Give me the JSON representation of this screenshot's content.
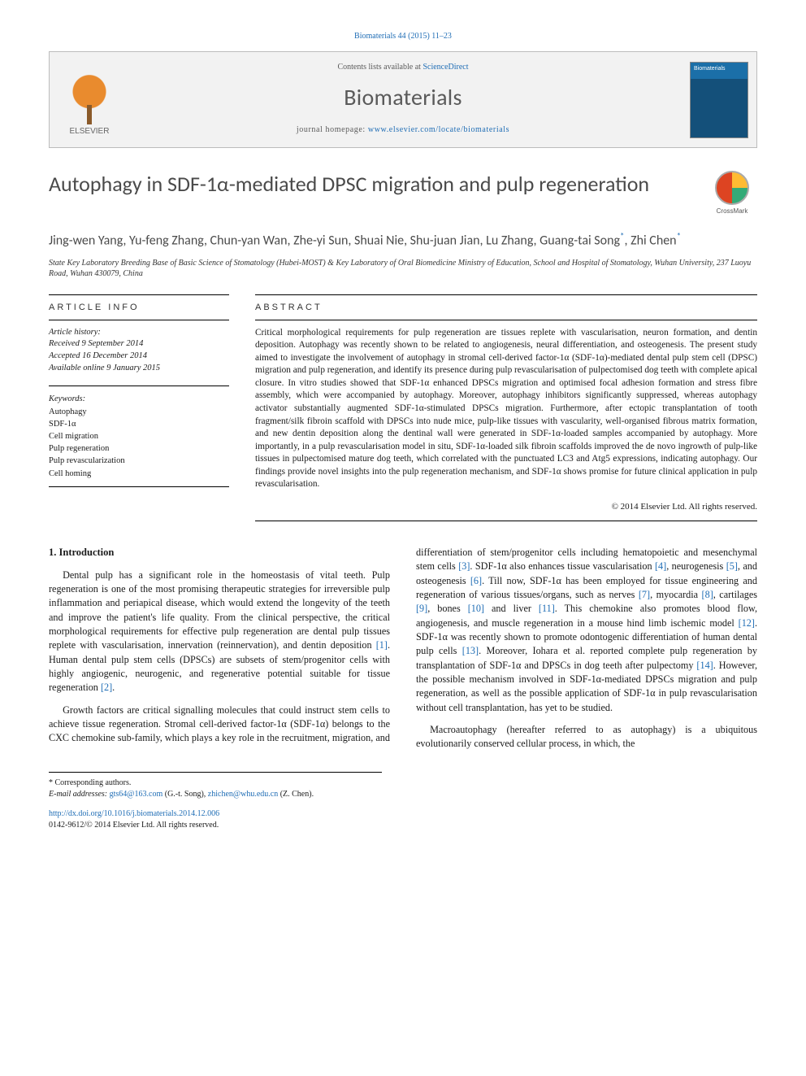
{
  "citation": "Biomaterials 44 (2015) 11–23",
  "header": {
    "contents_prefix": "Contents lists available at ",
    "contents_link": "ScienceDirect",
    "journal": "Biomaterials",
    "homepage_prefix": "journal homepage: ",
    "homepage_url": "www.elsevier.com/locate/biomaterials",
    "publisher_name": "ELSEVIER"
  },
  "crossmark_label": "CrossMark",
  "title": "Autophagy in SDF-1α-mediated DPSC migration and pulp regeneration",
  "authors_line": "Jing-wen Yang, Yu-feng Zhang, Chun-yan Wan, Zhe-yi Sun, Shuai Nie, Shu-juan Jian, Lu Zhang, Guang-tai Song",
  "authors_tail": ", Zhi Chen",
  "corr_marker": "*",
  "affiliation": "State Key Laboratory Breeding Base of Basic Science of Stomatology (Hubei-MOST) & Key Laboratory of Oral Biomedicine Ministry of Education, School and Hospital of Stomatology, Wuhan University, 237 Luoyu Road, Wuhan 430079, China",
  "info_label": "ARTICLE INFO",
  "abstract_label": "ABSTRACT",
  "history": {
    "label": "Article history:",
    "received": "Received 9 September 2014",
    "accepted": "Accepted 16 December 2014",
    "online": "Available online 9 January 2015"
  },
  "keywords_label": "Keywords:",
  "keywords": [
    "Autophagy",
    "SDF-1α",
    "Cell migration",
    "Pulp regeneration",
    "Pulp revascularization",
    "Cell homing"
  ],
  "abstract": "Critical morphological requirements for pulp regeneration are tissues replete with vascularisation, neuron formation, and dentin deposition. Autophagy was recently shown to be related to angiogenesis, neural differentiation, and osteogenesis. The present study aimed to investigate the involvement of autophagy in stromal cell-derived factor-1α (SDF-1α)-mediated dental pulp stem cell (DPSC) migration and pulp regeneration, and identify its presence during pulp revascularisation of pulpectomised dog teeth with complete apical closure. In vitro studies showed that SDF-1α enhanced DPSCs migration and optimised focal adhesion formation and stress fibre assembly, which were accompanied by autophagy. Moreover, autophagy inhibitors significantly suppressed, whereas autophagy activator substantially augmented SDF-1α-stimulated DPSCs migration. Furthermore, after ectopic transplantation of tooth fragment/silk fibroin scaffold with DPSCs into nude mice, pulp-like tissues with vascularity, well-organised fibrous matrix formation, and new dentin deposition along the dentinal wall were generated in SDF-1α-loaded samples accompanied by autophagy. More importantly, in a pulp revascularisation model in situ, SDF-1α-loaded silk fibroin scaffolds improved the de novo ingrowth of pulp-like tissues in pulpectomised mature dog teeth, which correlated with the punctuated LC3 and Atg5 expressions, indicating autophagy. Our findings provide novel insights into the pulp regeneration mechanism, and SDF-1α shows promise for future clinical application in pulp revascularisation.",
  "copyright": "© 2014 Elsevier Ltd. All rights reserved.",
  "intro_heading": "1. Introduction",
  "intro_p1": "Dental pulp has a significant role in the homeostasis of vital teeth. Pulp regeneration is one of the most promising therapeutic strategies for irreversible pulp inflammation and periapical disease, which would extend the longevity of the teeth and improve the patient's life quality. From the clinical perspective, the critical morphological requirements for effective pulp regeneration are dental pulp tissues replete with vascularisation, innervation (reinnervation), and dentin deposition [1]. Human dental pulp stem cells (DPSCs) are subsets of stem/progenitor cells with highly angiogenic, neurogenic, and regenerative potential suitable for tissue regeneration [2].",
  "intro_p2": "Growth factors are critical signalling molecules that could instruct stem cells to achieve tissue regeneration. Stromal cell-derived factor-1α (SDF-1α) belongs to the CXC chemokine sub-family, which plays a key role in the recruitment, migration, and differentiation of stem/progenitor cells including hematopoietic and mesenchymal stem cells [3]. SDF-1α also enhances tissue vascularisation [4], neurogenesis [5], and osteogenesis [6]. Till now, SDF-1α has been employed for tissue engineering and regeneration of various tissues/organs, such as nerves [7], myocardia [8], cartilages [9], bones [10] and liver [11]. This chemokine also promotes blood flow, angiogenesis, and muscle regeneration in a mouse hind limb ischemic model [12]. SDF-1α was recently shown to promote odontogenic differentiation of human dental pulp cells [13]. Moreover, Iohara et al. reported complete pulp regeneration by transplantation of SDF-1α and DPSCs in dog teeth after pulpectomy [14]. However, the possible mechanism involved in SDF-1α-mediated DPSCs migration and pulp regeneration, as well as the possible application of SDF-1α in pulp revascularisation without cell transplantation, has yet to be studied.",
  "intro_p3": "Macroautophagy (hereafter referred to as autophagy) is a ubiquitous evolutionarily conserved cellular process, in which, the",
  "footnotes": {
    "corr_label": "* Corresponding authors.",
    "email_label": "E-mail addresses: ",
    "email1": "gts64@163.com",
    "email1_who": " (G.-t. Song), ",
    "email2": "zhichen@whu.edu.cn",
    "email2_who": " (Z. Chen)."
  },
  "doi": {
    "url": "http://dx.doi.org/10.1016/j.biomaterials.2014.12.006",
    "issn_line": "0142-9612/© 2014 Elsevier Ltd. All rights reserved."
  },
  "colors": {
    "link": "#1f6db5",
    "header_bg": "#f2f2f2",
    "border": "#bcbcbc",
    "text_gray": "#4a4a4a"
  }
}
